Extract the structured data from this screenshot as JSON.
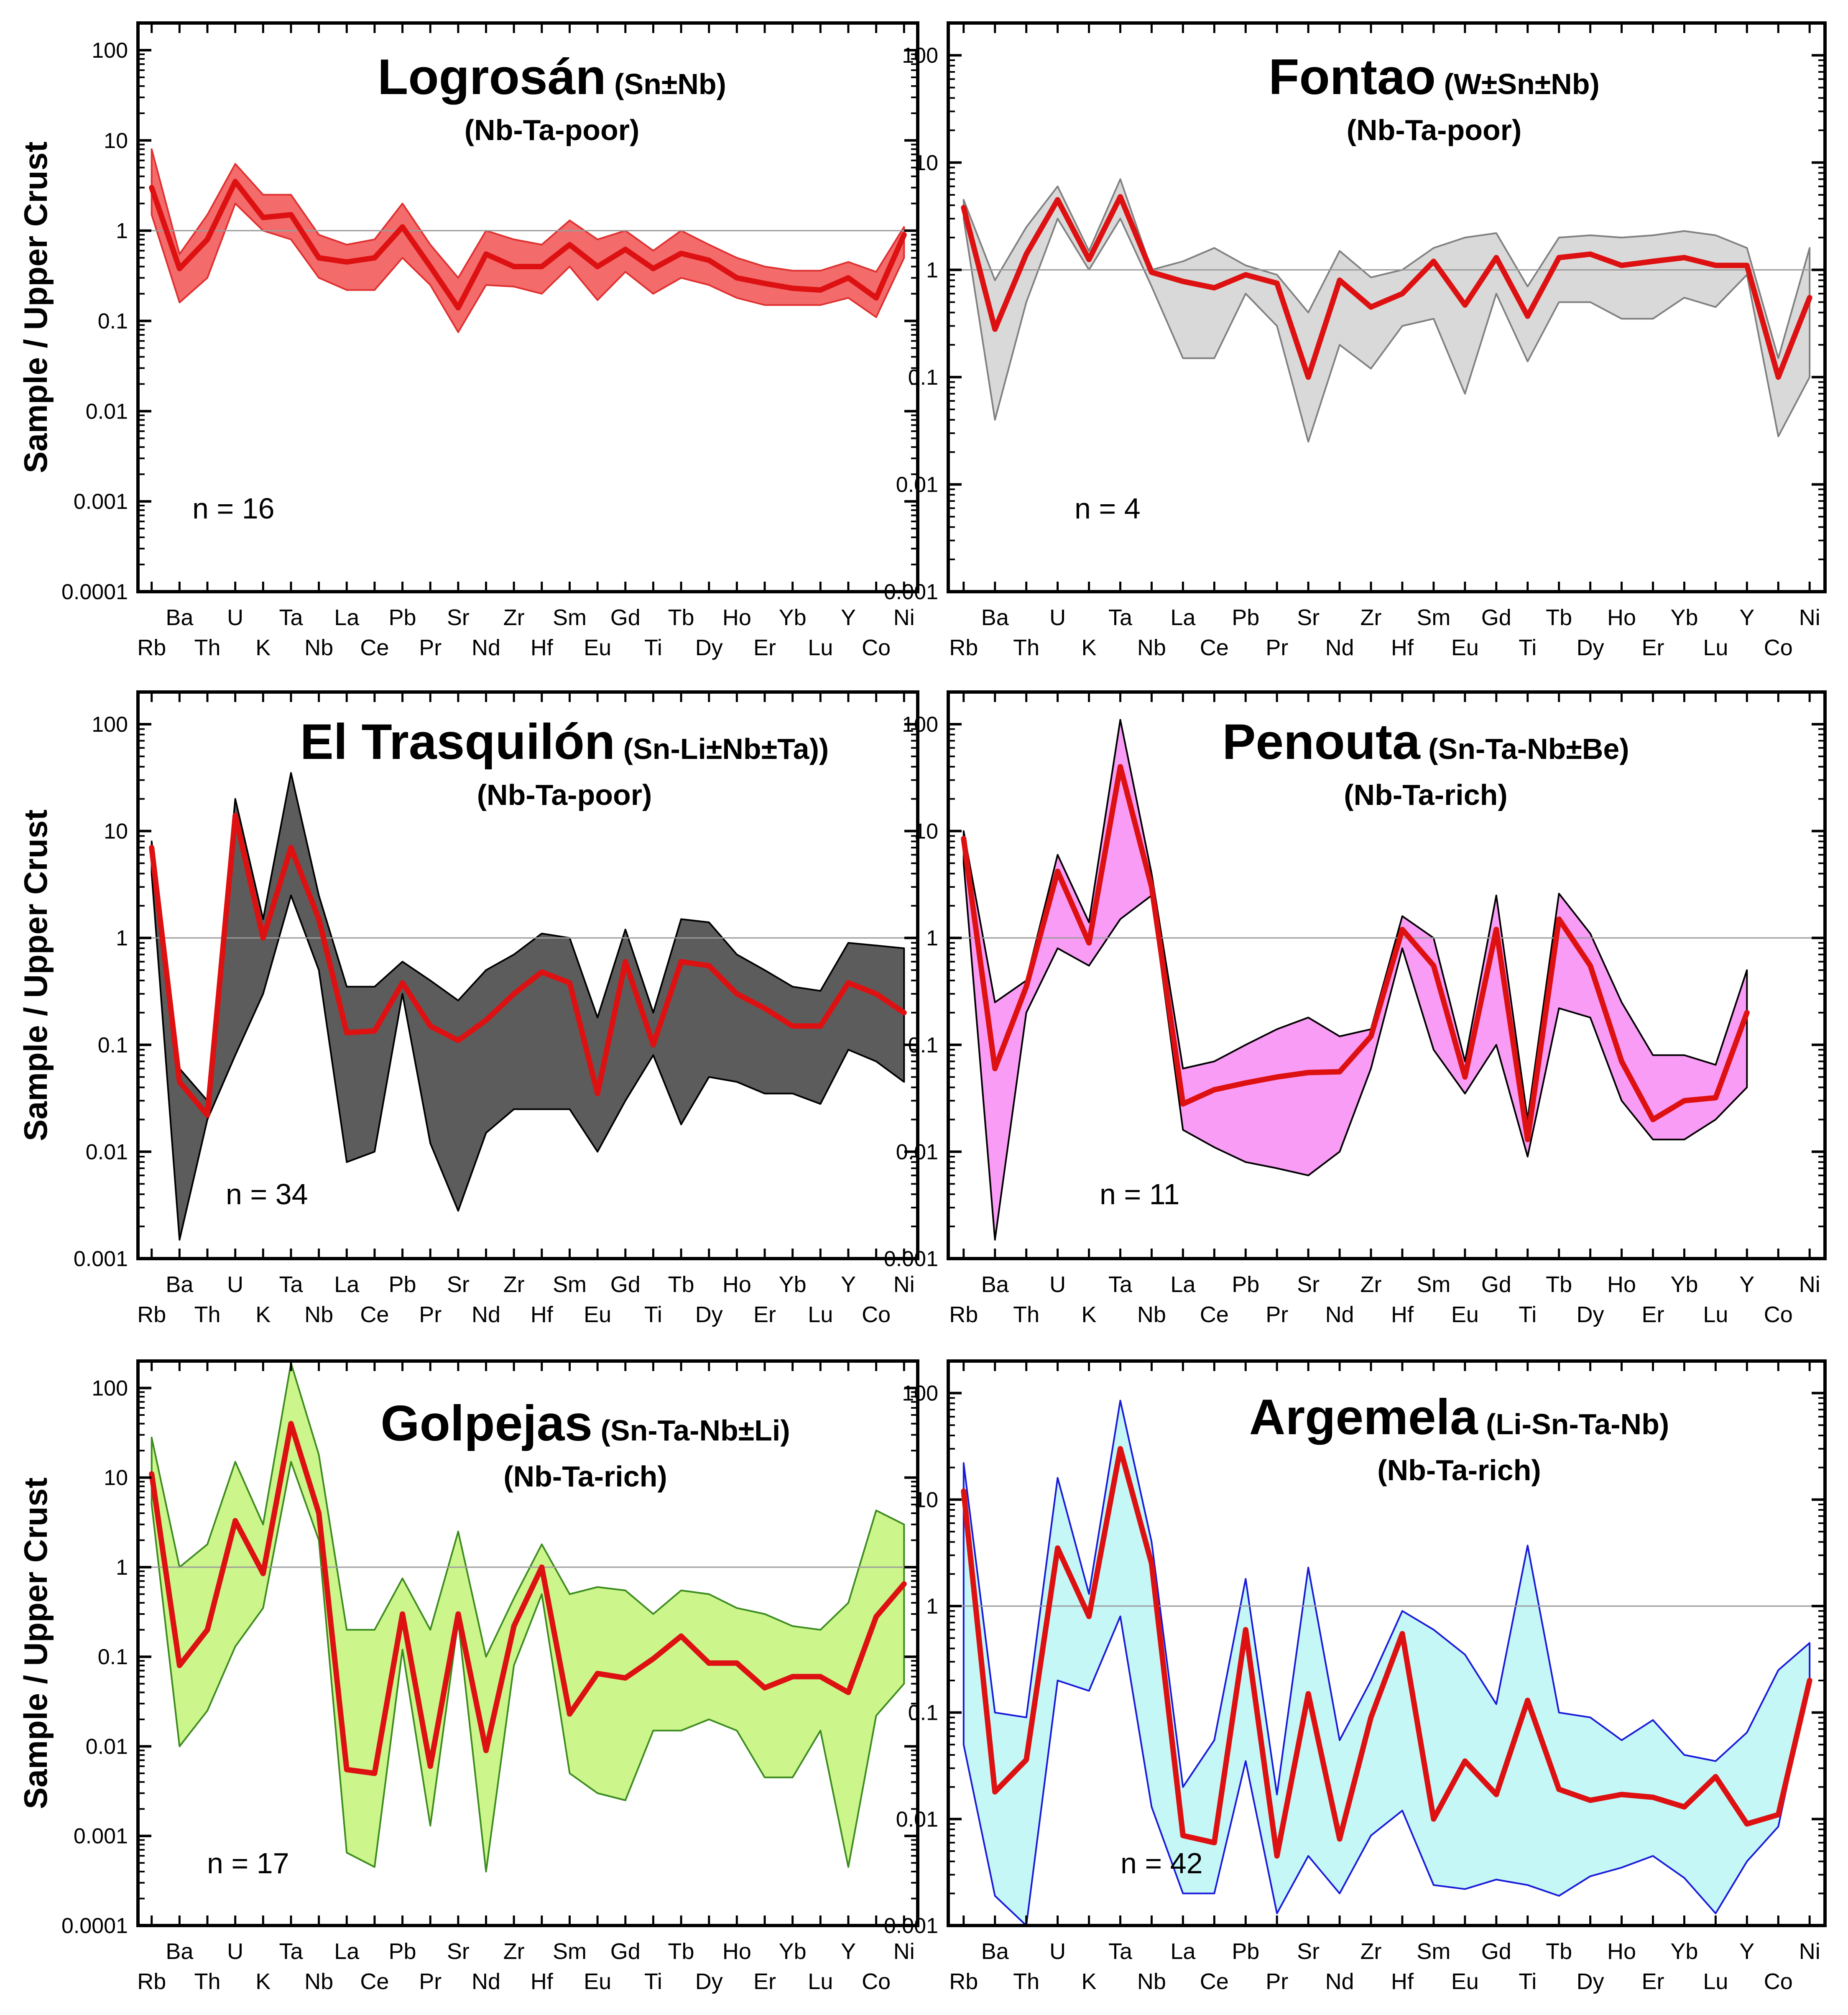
{
  "figure": {
    "y_axis_label": "Sample / Upper Crust",
    "elements": [
      "Rb",
      "Ba",
      "Th",
      "U",
      "K",
      "Ta",
      "Nb",
      "La",
      "Ce",
      "Pb",
      "Pr",
      "Sr",
      "Nd",
      "Zr",
      "Hf",
      "Sm",
      "Eu",
      "Gd",
      "Ti",
      "Tb",
      "Dy",
      "Ho",
      "Er",
      "Yb",
      "Lu",
      "Y",
      "Co",
      "Ni"
    ]
  },
  "chart_data": [
    {
      "type": "line",
      "title": "Logrosán",
      "title_suffix": "(Sn±Nb)",
      "subtitle": "(Nb-Ta-poor)",
      "n_label": "n = 16",
      "fill_color": "#f36b6b",
      "edge_color": "#e03030",
      "line_color": "#dd1111",
      "yscale": "log",
      "ylim": [
        0.0001,
        200
      ],
      "y_ticks": [
        0.0001,
        0.001,
        0.01,
        0.1,
        1,
        10,
        100
      ],
      "y_tick_labels": [
        "0.0001",
        "0.001",
        "0.01",
        "0.1",
        "1",
        "10",
        "100"
      ],
      "reference_line": 1,
      "series": [
        {
          "name": "median",
          "values": [
            3,
            0.38,
            0.8,
            3.5,
            1.4,
            1.5,
            0.5,
            0.45,
            0.5,
            1.1,
            0.4,
            0.14,
            0.55,
            0.4,
            0.4,
            0.7,
            0.4,
            0.62,
            0.38,
            0.56,
            0.47,
            0.3,
            0.26,
            0.23,
            0.22,
            0.3,
            0.18,
            0.9
          ]
        },
        {
          "name": "max",
          "values": [
            8,
            0.55,
            1.5,
            5.5,
            2.5,
            2.5,
            0.9,
            0.7,
            0.8,
            2,
            0.7,
            0.3,
            1,
            0.8,
            0.7,
            1.3,
            0.8,
            1,
            0.6,
            1,
            0.7,
            0.5,
            0.4,
            0.36,
            0.36,
            0.45,
            0.35,
            1.1
          ]
        },
        {
          "name": "min",
          "values": [
            1.5,
            0.16,
            0.3,
            2,
            1,
            0.8,
            0.3,
            0.22,
            0.22,
            0.5,
            0.25,
            0.075,
            0.25,
            0.24,
            0.2,
            0.4,
            0.17,
            0.35,
            0.2,
            0.3,
            0.25,
            0.18,
            0.15,
            0.15,
            0.15,
            0.18,
            0.11,
            0.5
          ]
        }
      ]
    },
    {
      "type": "line",
      "title": "Fontao",
      "title_suffix": "(W±Sn±Nb)",
      "subtitle": "(Nb-Ta-poor)",
      "n_label": "n = 4",
      "fill_color": "#d9d9d9",
      "edge_color": "#808080",
      "line_color": "#dd1111",
      "yscale": "log",
      "ylim": [
        0.001,
        200
      ],
      "y_ticks": [
        0.001,
        0.01,
        0.1,
        1,
        10,
        100
      ],
      "y_tick_labels": [
        "0.001",
        "0.01",
        "0.1",
        "1",
        "10",
        "100"
      ],
      "reference_line": 1,
      "series": [
        {
          "name": "median",
          "values": [
            3.8,
            0.28,
            1.4,
            4.5,
            1.25,
            4.8,
            0.95,
            0.78,
            0.68,
            0.9,
            0.75,
            0.1,
            0.8,
            0.45,
            0.6,
            1.2,
            0.47,
            1.3,
            0.37,
            1.3,
            1.4,
            1.1,
            1.2,
            1.3,
            1.1,
            1.1,
            0.1,
            0.55
          ]
        },
        {
          "name": "max",
          "values": [
            4.5,
            0.8,
            2.5,
            6,
            1.5,
            7,
            1,
            1.2,
            1.6,
            1.1,
            0.9,
            0.4,
            1.5,
            0.85,
            1,
            1.6,
            2,
            2.2,
            0.7,
            2,
            2.1,
            2,
            2.1,
            2.3,
            2.1,
            1.6,
            0.15,
            1.6
          ]
        },
        {
          "name": "min",
          "values": [
            3,
            0.04,
            0.5,
            3,
            1,
            3,
            0.7,
            0.15,
            0.15,
            0.6,
            0.3,
            0.025,
            0.2,
            0.12,
            0.3,
            0.35,
            0.07,
            0.6,
            0.14,
            0.5,
            0.5,
            0.35,
            0.35,
            0.55,
            0.45,
            0.9,
            0.028,
            0.1
          ]
        }
      ]
    },
    {
      "type": "line",
      "title": "El Trasquilón",
      "title_suffix": "(Sn-Li±Nb±Ta))",
      "subtitle": "(Nb-Ta-poor)",
      "n_label": "n = 34",
      "fill_color": "#5c5c5c",
      "edge_color": "#000000",
      "line_color": "#dd1111",
      "yscale": "log",
      "ylim": [
        0.001,
        200
      ],
      "y_ticks": [
        0.001,
        0.01,
        0.1,
        1,
        10,
        100
      ],
      "y_tick_labels": [
        "0.001",
        "0.01",
        "0.1",
        "1",
        "10",
        "100"
      ],
      "reference_line": 1,
      "series": [
        {
          "name": "median",
          "values": [
            7,
            0.045,
            0.022,
            14,
            1,
            7,
            1.5,
            0.13,
            0.135,
            0.38,
            0.15,
            0.11,
            0.17,
            0.3,
            0.48,
            0.38,
            0.035,
            0.6,
            0.1,
            0.6,
            0.55,
            0.3,
            0.22,
            0.15,
            0.15,
            0.38,
            0.3,
            0.2
          ]
        },
        {
          "name": "max",
          "values": [
            8,
            0.06,
            0.03,
            20,
            1.5,
            35,
            2.5,
            0.35,
            0.35,
            0.6,
            0.4,
            0.26,
            0.5,
            0.7,
            1.1,
            1,
            0.18,
            1.2,
            0.2,
            1.5,
            1.4,
            0.7,
            0.5,
            0.35,
            0.32,
            0.9,
            0.85,
            0.8
          ]
        },
        {
          "name": "min",
          "values": [
            4,
            0.0015,
            0.02,
            0.08,
            0.3,
            2.5,
            0.5,
            0.008,
            0.01,
            0.3,
            0.012,
            0.0028,
            0.015,
            0.025,
            0.025,
            0.025,
            0.01,
            0.03,
            0.08,
            0.018,
            0.05,
            0.045,
            0.035,
            0.035,
            0.028,
            0.09,
            0.07,
            0.045
          ]
        }
      ]
    },
    {
      "type": "line",
      "title": "Penouta",
      "title_suffix": "(Sn-Ta-Nb±Be)",
      "subtitle": "(Nb-Ta-rich)",
      "n_label": "n = 11",
      "fill_color": "#f99cf5",
      "edge_color": "#000000",
      "line_color": "#dd1111",
      "yscale": "log",
      "ylim": [
        0.001,
        200
      ],
      "y_ticks": [
        0.001,
        0.01,
        0.1,
        1,
        10,
        100
      ],
      "y_tick_labels": [
        "0.001",
        "0.01",
        "0.1",
        "1",
        "10",
        "100"
      ],
      "reference_line": 1,
      "series": [
        {
          "name": "median",
          "values": [
            8.5,
            0.06,
            0.35,
            4.2,
            0.9,
            40,
            3,
            0.028,
            0.038,
            0.044,
            0.05,
            0.055,
            0.056,
            0.12,
            1.2,
            0.55,
            0.05,
            1.2,
            0.013,
            1.5,
            0.55,
            0.07,
            0.02,
            0.03,
            0.032,
            0.2
          ]
        },
        {
          "name": "max",
          "values": [
            10,
            0.25,
            0.4,
            6,
            1.4,
            110,
            4,
            0.06,
            0.07,
            0.1,
            0.14,
            0.18,
            0.12,
            0.14,
            1.6,
            1,
            0.07,
            2.5,
            0.02,
            2.6,
            1.1,
            0.25,
            0.08,
            0.08,
            0.065,
            0.5
          ]
        },
        {
          "name": "min",
          "values": [
            5,
            0.0015,
            0.2,
            0.8,
            0.55,
            1.5,
            2.5,
            0.016,
            0.011,
            0.008,
            0.007,
            0.006,
            0.01,
            0.06,
            0.8,
            0.09,
            0.035,
            0.1,
            0.009,
            0.22,
            0.18,
            0.03,
            0.013,
            0.013,
            0.02,
            0.04
          ]
        }
      ]
    },
    {
      "type": "line",
      "title": "Golpejas",
      "title_suffix": "(Sn-Ta-Nb±Li)",
      "subtitle": "(Nb-Ta-rich)",
      "n_label": "n = 17",
      "fill_color": "#ccf58c",
      "edge_color": "#3c8c1e",
      "line_color": "#dd1111",
      "yscale": "log",
      "ylim": [
        0.0001,
        200
      ],
      "y_ticks": [
        0.0001,
        0.001,
        0.01,
        0.1,
        1,
        10,
        100
      ],
      "y_tick_labels": [
        "0.0001",
        "0.001",
        "0.01",
        "0.1",
        "1",
        "10",
        "100"
      ],
      "reference_line": 1,
      "series": [
        {
          "name": "median",
          "values": [
            11,
            0.08,
            0.2,
            3.3,
            0.85,
            40,
            4,
            0.0055,
            0.005,
            0.3,
            0.006,
            0.3,
            0.009,
            0.22,
            1,
            0.023,
            0.065,
            0.058,
            0.095,
            0.17,
            0.085,
            0.085,
            0.045,
            0.06,
            0.06,
            0.04,
            0.28,
            0.65
          ]
        },
        {
          "name": "max",
          "values": [
            28,
            1,
            1.8,
            15,
            3,
            190,
            18,
            0.2,
            0.2,
            0.75,
            0.2,
            2.5,
            0.1,
            0.45,
            1.8,
            0.5,
            0.6,
            0.55,
            0.3,
            0.55,
            0.5,
            0.35,
            0.3,
            0.22,
            0.2,
            0.4,
            4.3,
            3
          ]
        },
        {
          "name": "min",
          "values": [
            5,
            0.01,
            0.025,
            0.13,
            0.35,
            15,
            2,
            0.00065,
            0.00045,
            0.12,
            0.0013,
            0.25,
            0.0004,
            0.08,
            0.5,
            0.005,
            0.003,
            0.0025,
            0.015,
            0.015,
            0.02,
            0.015,
            0.0045,
            0.0045,
            0.015,
            0.00045,
            0.022,
            0.05
          ]
        }
      ]
    },
    {
      "type": "line",
      "title": "Argemela",
      "title_suffix": "(Li-Sn-Ta-Nb)",
      "subtitle": "(Nb-Ta-rich)",
      "n_label": "n = 42",
      "fill_color": "#c5f7f7",
      "edge_color": "#1a1ad9",
      "line_color": "#dd1111",
      "yscale": "log",
      "ylim": [
        0.001,
        200
      ],
      "y_ticks": [
        0.001,
        0.01,
        0.1,
        1,
        10,
        100
      ],
      "y_tick_labels": [
        "0.001",
        "0.01",
        "0.1",
        "1",
        "10",
        "100"
      ],
      "reference_line": 1,
      "series": [
        {
          "name": "median",
          "values": [
            12,
            0.018,
            0.036,
            3.5,
            0.8,
            30,
            2.5,
            0.007,
            0.006,
            0.6,
            0.0045,
            0.15,
            0.0065,
            0.09,
            0.55,
            0.01,
            0.035,
            0.017,
            0.13,
            0.019,
            0.015,
            0.017,
            0.016,
            0.013,
            0.025,
            0.009,
            0.011,
            0.2
          ]
        },
        {
          "name": "max",
          "values": [
            22,
            0.1,
            0.09,
            16,
            1.3,
            85,
            4,
            0.02,
            0.055,
            1.8,
            0.017,
            2.3,
            0.055,
            0.2,
            0.9,
            0.6,
            0.35,
            0.12,
            3.7,
            0.1,
            0.09,
            0.055,
            0.085,
            0.04,
            0.035,
            0.065,
            0.25,
            0.45
          ]
        },
        {
          "name": "min",
          "values": [
            0.05,
            0.0019,
            0.001,
            0.2,
            0.16,
            0.8,
            0.013,
            0.002,
            0.002,
            0.035,
            0.0013,
            0.0045,
            0.002,
            0.007,
            0.012,
            0.0024,
            0.0022,
            0.0027,
            0.0024,
            0.0019,
            0.0029,
            0.0035,
            0.0045,
            0.0028,
            0.0013,
            0.004,
            0.0085,
            0.2
          ]
        }
      ]
    }
  ]
}
